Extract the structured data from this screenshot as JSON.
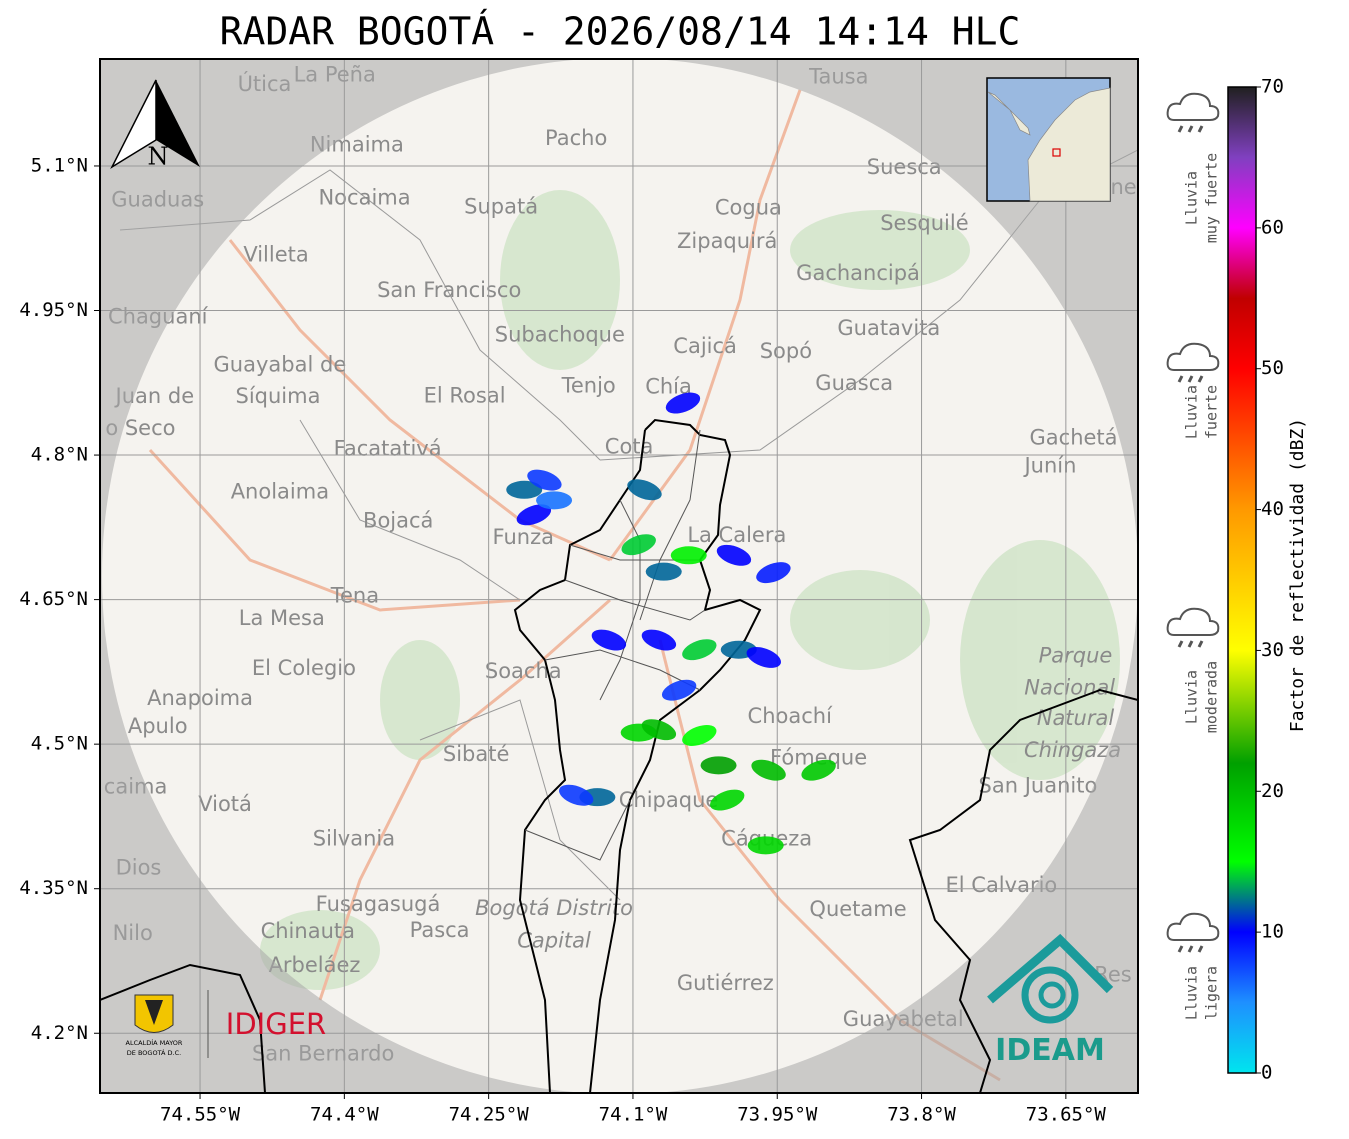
{
  "title": "RADAR BOGOTÁ - 2026/08/14 14:14 HLC",
  "map": {
    "xlim": [
      -74.654,
      -73.575
    ],
    "ylim": [
      4.138,
      5.211
    ],
    "xticks": [
      {
        "value": -74.55,
        "label": "74.55°W"
      },
      {
        "value": -74.4,
        "label": "74.4°W"
      },
      {
        "value": -74.25,
        "label": "74.25°W"
      },
      {
        "value": -74.1,
        "label": "74.1°W"
      },
      {
        "value": -73.95,
        "label": "73.95°W"
      },
      {
        "value": -73.8,
        "label": "73.8°W"
      },
      {
        "value": -73.65,
        "label": "73.65°W"
      }
    ],
    "yticks": [
      {
        "value": 5.1,
        "label": "5.1°N"
      },
      {
        "value": 4.95,
        "label": "4.95°N"
      },
      {
        "value": 4.8,
        "label": "4.8°N"
      },
      {
        "value": 4.65,
        "label": "4.65°N"
      },
      {
        "value": 4.5,
        "label": "4.5°N"
      },
      {
        "value": 4.35,
        "label": "4.35°N"
      },
      {
        "value": 4.2,
        "label": "4.2°N"
      }
    ],
    "places": [
      {
        "name": "Útica",
        "lon": -74.483,
        "lat": 5.184
      },
      {
        "name": "La Peña",
        "lon": -74.41,
        "lat": 5.194
      },
      {
        "name": "Tausa",
        "lon": -73.886,
        "lat": 5.192
      },
      {
        "name": "Pacho",
        "lon": -74.159,
        "lat": 5.128
      },
      {
        "name": "Nimaima",
        "lon": -74.387,
        "lat": 5.121
      },
      {
        "name": "Suesca",
        "lon": -73.818,
        "lat": 5.098
      },
      {
        "name": "ne",
        "lon": -73.59,
        "lat": 5.077
      },
      {
        "name": "Guaduas",
        "lon": -74.594,
        "lat": 5.064
      },
      {
        "name": "Nocaima",
        "lon": -74.379,
        "lat": 5.066
      },
      {
        "name": "Supatá",
        "lon": -74.237,
        "lat": 5.057
      },
      {
        "name": "Cogua",
        "lon": -73.98,
        "lat": 5.056
      },
      {
        "name": "Sesquilé",
        "lon": -73.797,
        "lat": 5.04
      },
      {
        "name": "Zipaquirá",
        "lon": -74.002,
        "lat": 5.021
      },
      {
        "name": "Villeta",
        "lon": -74.471,
        "lat": 5.007
      },
      {
        "name": "Gachancipá",
        "lon": -73.866,
        "lat": 4.988
      },
      {
        "name": "San Francisco",
        "lon": -74.291,
        "lat": 4.97
      },
      {
        "name": "Chaguaní",
        "lon": -74.594,
        "lat": 4.943
      },
      {
        "name": "Guatavita",
        "lon": -73.834,
        "lat": 4.931
      },
      {
        "name": "Subachoque",
        "lon": -74.176,
        "lat": 4.924
      },
      {
        "name": "Cajicá",
        "lon": -74.025,
        "lat": 4.912
      },
      {
        "name": "Sopó",
        "lon": -73.941,
        "lat": 4.907
      },
      {
        "name": "Guayabal de",
        "lon": -74.467,
        "lat": 4.893
      },
      {
        "name": "Tenjo",
        "lon": -74.146,
        "lat": 4.871
      },
      {
        "name": "Juan de",
        "lon": -74.597,
        "lat": 4.86
      },
      {
        "name": "Síquima",
        "lon": -74.469,
        "lat": 4.86
      },
      {
        "name": "Guasca",
        "lon": -73.87,
        "lat": 4.874
      },
      {
        "name": "El Rosal",
        "lon": -74.275,
        "lat": 4.861
      },
      {
        "name": "Chía",
        "lon": -74.063,
        "lat": 4.87
      },
      {
        "name": "o Seco",
        "lon": -74.612,
        "lat": 4.827
      },
      {
        "name": "Gachetá",
        "lon": -73.642,
        "lat": 4.817
      },
      {
        "name": "Facatativá",
        "lon": -74.355,
        "lat": 4.806
      },
      {
        "name": "Cota",
        "lon": -74.104,
        "lat": 4.808
      },
      {
        "name": "Junín",
        "lon": -73.666,
        "lat": 4.788
      },
      {
        "name": "Anolaima",
        "lon": -74.467,
        "lat": 4.761
      },
      {
        "name": "Bojacá",
        "lon": -74.344,
        "lat": 4.731
      },
      {
        "name": "Funza",
        "lon": -74.214,
        "lat": 4.714
      },
      {
        "name": "La Calera",
        "lon": -73.992,
        "lat": 4.716
      },
      {
        "name": "Tena",
        "lon": -74.389,
        "lat": 4.653
      },
      {
        "name": "La Mesa",
        "lon": -74.465,
        "lat": 4.63
      },
      {
        "name": "Parque",
        "lon": -73.64,
        "lat": 4.591,
        "color": "#8fb79a"
      },
      {
        "name": "Nacional",
        "lon": -73.646,
        "lat": 4.558,
        "color": "#8fb79a"
      },
      {
        "name": "Natural",
        "lon": -73.64,
        "lat": 4.526,
        "color": "#8fb79a"
      },
      {
        "name": "Chingaza",
        "lon": -73.643,
        "lat": 4.493,
        "color": "#8fb79a"
      },
      {
        "name": "El Colegio",
        "lon": -74.442,
        "lat": 4.578
      },
      {
        "name": "Soacha",
        "lon": -74.214,
        "lat": 4.575
      },
      {
        "name": "Anapoima",
        "lon": -74.55,
        "lat": 4.547
      },
      {
        "name": "Apulo",
        "lon": -74.594,
        "lat": 4.518
      },
      {
        "name": "Choachí",
        "lon": -73.937,
        "lat": 4.528
      },
      {
        "name": "Sibaté",
        "lon": -74.263,
        "lat": 4.489
      },
      {
        "name": "Fómeque",
        "lon": -73.907,
        "lat": 4.485
      },
      {
        "name": "San Juanito",
        "lon": -73.679,
        "lat": 4.456
      },
      {
        "name": "caima",
        "lon": -74.617,
        "lat": 4.455
      },
      {
        "name": "Viotá",
        "lon": -74.524,
        "lat": 4.437
      },
      {
        "name": "Chipaque",
        "lon": -74.063,
        "lat": 4.441
      },
      {
        "name": "Silvania",
        "lon": -74.39,
        "lat": 4.401
      },
      {
        "name": "Cáqueza",
        "lon": -73.961,
        "lat": 4.401
      },
      {
        "name": "Dios",
        "lon": -74.614,
        "lat": 4.371
      },
      {
        "name": "El Calvario",
        "lon": -73.717,
        "lat": 4.353
      },
      {
        "name": "Fusagasugá",
        "lon": -74.365,
        "lat": 4.333
      },
      {
        "name": "Bogotá Distrito",
        "lon": -74.182,
        "lat": 4.329,
        "color": "#c9a7d6"
      },
      {
        "name": "Capital",
        "lon": -74.182,
        "lat": 4.295,
        "color": "#c9a7d6"
      },
      {
        "name": "Quetame",
        "lon": -73.866,
        "lat": 4.328
      },
      {
        "name": "Nilo",
        "lon": -74.62,
        "lat": 4.303
      },
      {
        "name": "Chinauta",
        "lon": -74.438,
        "lat": 4.305
      },
      {
        "name": "Pasca",
        "lon": -74.301,
        "lat": 4.306
      },
      {
        "name": "Arbeláez",
        "lon": -74.431,
        "lat": 4.27
      },
      {
        "name": "Gutiérrez",
        "lon": -74.004,
        "lat": 4.251
      },
      {
        "name": "Res",
        "lon": -73.601,
        "lat": 4.26
      },
      {
        "name": "Guayabetal",
        "lon": -73.819,
        "lat": 4.214
      },
      {
        "name": "San Bernardo",
        "lon": -74.422,
        "lat": 4.178
      }
    ],
    "echoes": [
      {
        "lon": -74.048,
        "lat": 4.854,
        "dbz": 10
      },
      {
        "lon": -74.213,
        "lat": 4.764,
        "dbz": 12
      },
      {
        "lon": -74.192,
        "lat": 4.774,
        "dbz": 8
      },
      {
        "lon": -74.203,
        "lat": 4.738,
        "dbz": 10
      },
      {
        "lon": -74.182,
        "lat": 4.753,
        "dbz": 6
      },
      {
        "lon": -74.088,
        "lat": 4.764,
        "dbz": 12
      },
      {
        "lon": -74.094,
        "lat": 4.707,
        "dbz": 14
      },
      {
        "lon": -74.042,
        "lat": 4.696,
        "dbz": 16
      },
      {
        "lon": -73.995,
        "lat": 4.696,
        "dbz": 10
      },
      {
        "lon": -73.954,
        "lat": 4.678,
        "dbz": 9
      },
      {
        "lon": -74.068,
        "lat": 4.679,
        "dbz": 12
      },
      {
        "lon": -74.073,
        "lat": 4.608,
        "dbz": 10
      },
      {
        "lon": -74.031,
        "lat": 4.598,
        "dbz": 14
      },
      {
        "lon": -73.99,
        "lat": 4.598,
        "dbz": 12
      },
      {
        "lon": -73.964,
        "lat": 4.59,
        "dbz": 10
      },
      {
        "lon": -74.052,
        "lat": 4.556,
        "dbz": 8
      },
      {
        "lon": -74.094,
        "lat": 4.512,
        "dbz": 18
      },
      {
        "lon": -74.073,
        "lat": 4.515,
        "dbz": 20
      },
      {
        "lon": -74.031,
        "lat": 4.509,
        "dbz": 15
      },
      {
        "lon": -74.011,
        "lat": 4.478,
        "dbz": 22
      },
      {
        "lon": -73.959,
        "lat": 4.473,
        "dbz": 20
      },
      {
        "lon": -73.907,
        "lat": 4.473,
        "dbz": 19
      },
      {
        "lon": -74.137,
        "lat": 4.445,
        "dbz": 12
      },
      {
        "lon": -74.159,
        "lat": 4.447,
        "dbz": 8
      },
      {
        "lon": -74.002,
        "lat": 4.442,
        "dbz": 18
      },
      {
        "lon": -73.962,
        "lat": 4.395,
        "dbz": 18
      },
      {
        "lon": -74.125,
        "lat": 4.608,
        "dbz": 10
      }
    ]
  },
  "colorbar": {
    "label": "Factor de reflectividad (dBZ)",
    "lim": [
      0,
      70
    ],
    "ticks": [
      0,
      10,
      20,
      30,
      40,
      50,
      60,
      70
    ],
    "stops": [
      {
        "value": 0,
        "color": "#00e5ee"
      },
      {
        "value": 5,
        "color": "#1e90ff"
      },
      {
        "value": 10,
        "color": "#0000ff"
      },
      {
        "value": 15,
        "color": "#00ff00"
      },
      {
        "value": 22,
        "color": "#00a000"
      },
      {
        "value": 30,
        "color": "#ffff00"
      },
      {
        "value": 40,
        "color": "#ff9900"
      },
      {
        "value": 50,
        "color": "#ff0000"
      },
      {
        "value": 55,
        "color": "#c00000"
      },
      {
        "value": 60,
        "color": "#ff00ff"
      },
      {
        "value": 65,
        "color": "#8040c0"
      },
      {
        "value": 70,
        "color": "#202020"
      }
    ]
  },
  "categories": [
    {
      "lines": [
        "Lluvia",
        "muy fuerte"
      ]
    },
    {
      "lines": [
        "Lluvia",
        "fuerte"
      ]
    },
    {
      "lines": [
        "Lluvia",
        "moderada"
      ]
    },
    {
      "lines": [
        "Lluvia",
        "ligera"
      ]
    }
  ],
  "compass": "N",
  "logos": {
    "bogota": [
      "ALCALDÍA MAYOR",
      "DE BOGOTÁ D.C."
    ],
    "idiger": "IDIGER",
    "ideam": "IDEAM"
  }
}
